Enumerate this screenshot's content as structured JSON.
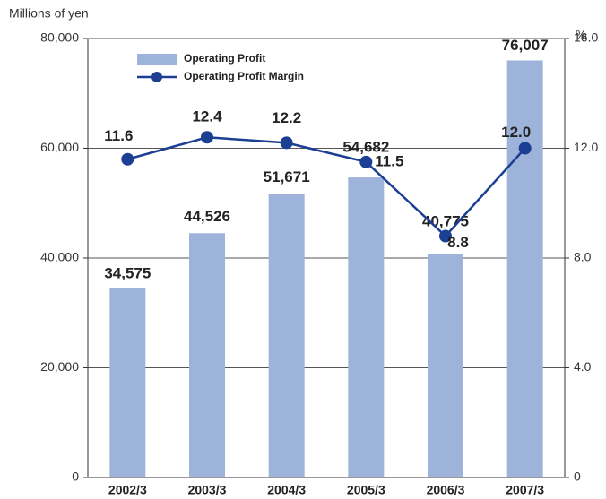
{
  "chart_data": {
    "type": "combo",
    "y_label": "Millions of yen",
    "y2_label": "%",
    "categories": [
      "2002/3",
      "2003/3",
      "2004/3",
      "2005/3",
      "2006/3",
      "2007/3"
    ],
    "series": [
      {
        "name": "Operating Profit",
        "type": "bar",
        "color": "#9db3d9",
        "values": [
          34575,
          44526,
          51671,
          54682,
          40775,
          76007
        ],
        "value_labels": [
          "34,575",
          "44,526",
          "51,671",
          "54,682",
          "40,775",
          "76,007"
        ]
      },
      {
        "name": "Operating Profit Margin",
        "type": "line",
        "axis": "y2",
        "color": "#1c3f94",
        "values": [
          11.6,
          12.4,
          12.2,
          11.5,
          8.8,
          12.0
        ],
        "value_labels": [
          "11.6",
          "12.4",
          "12.2",
          "11.5",
          "8.8",
          "12.0"
        ]
      }
    ],
    "ylim": [
      0,
      80000
    ],
    "yticks": [
      0,
      {
        "value": 20000,
        "label": "20,000"
      },
      {
        "value": 40000,
        "label": "40,000"
      },
      {
        "value": 60000,
        "label": "60,000"
      },
      {
        "value": 80000,
        "label": "80,000"
      }
    ],
    "y2lim": [
      0,
      16
    ],
    "y2ticks": [
      0,
      {
        "value": 4,
        "label": "4.0"
      },
      {
        "value": 8,
        "label": "8.0"
      },
      {
        "value": 12,
        "label": "12.0"
      },
      {
        "value": 16,
        "label": "16.0"
      }
    ],
    "grid": true,
    "legend": "top-left"
  }
}
